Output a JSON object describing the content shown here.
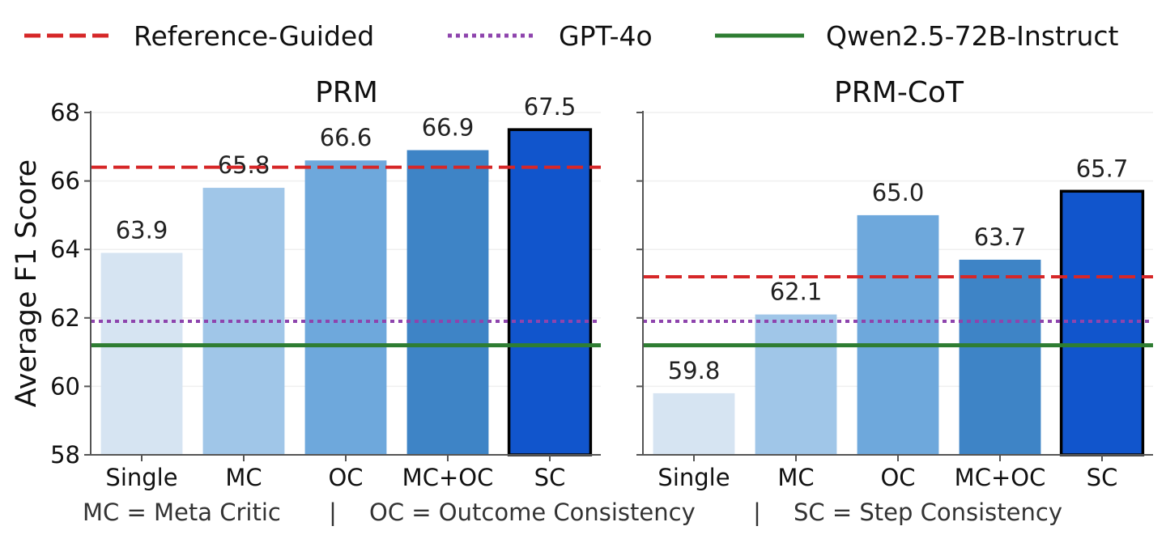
{
  "chart_data": {
    "type": "bar",
    "ylabel": "Average F1 Score",
    "ylim": [
      58,
      68
    ],
    "yticks": [
      58,
      60,
      62,
      64,
      66,
      68
    ],
    "categories": [
      "Single",
      "MC",
      "OC",
      "MC+OC",
      "SC"
    ],
    "bar_colors": [
      "#d6e4f2",
      "#a0c6e8",
      "#6ea8dc",
      "#3e84c6",
      "#1155cc"
    ],
    "highlight_category": "SC",
    "legend": [
      {
        "label": "Reference-Guided",
        "color": "#d62728",
        "style": "dashed"
      },
      {
        "label": "GPT-4o",
        "color": "#8e44ad",
        "style": "dotted"
      },
      {
        "label": "Qwen2.5-72B-Instruct",
        "color": "#2e7d32",
        "style": "solid"
      }
    ],
    "panels": [
      {
        "title": "PRM",
        "values": [
          63.9,
          65.8,
          66.6,
          66.9,
          67.5
        ],
        "value_labels": [
          "63.9",
          "65.8",
          "66.6",
          "66.9",
          "67.5"
        ],
        "baselines": {
          "Reference-Guided": 66.4,
          "GPT-4o": 61.9,
          "Qwen2.5-72B-Instruct": 61.2
        }
      },
      {
        "title": "PRM-CoT",
        "values": [
          59.8,
          62.1,
          65.0,
          63.7,
          65.7
        ],
        "value_labels": [
          "59.8",
          "62.1",
          "65.0",
          "63.7",
          "65.7"
        ],
        "baselines": {
          "Reference-Guided": 63.2,
          "GPT-4o": 61.9,
          "Qwen2.5-72B-Instruct": 61.2
        }
      }
    ],
    "footnote": {
      "mc": "MC = Meta Critic",
      "oc": "OC = Outcome Consistency",
      "sc": "SC = Step Consistency",
      "separator": "|"
    }
  }
}
